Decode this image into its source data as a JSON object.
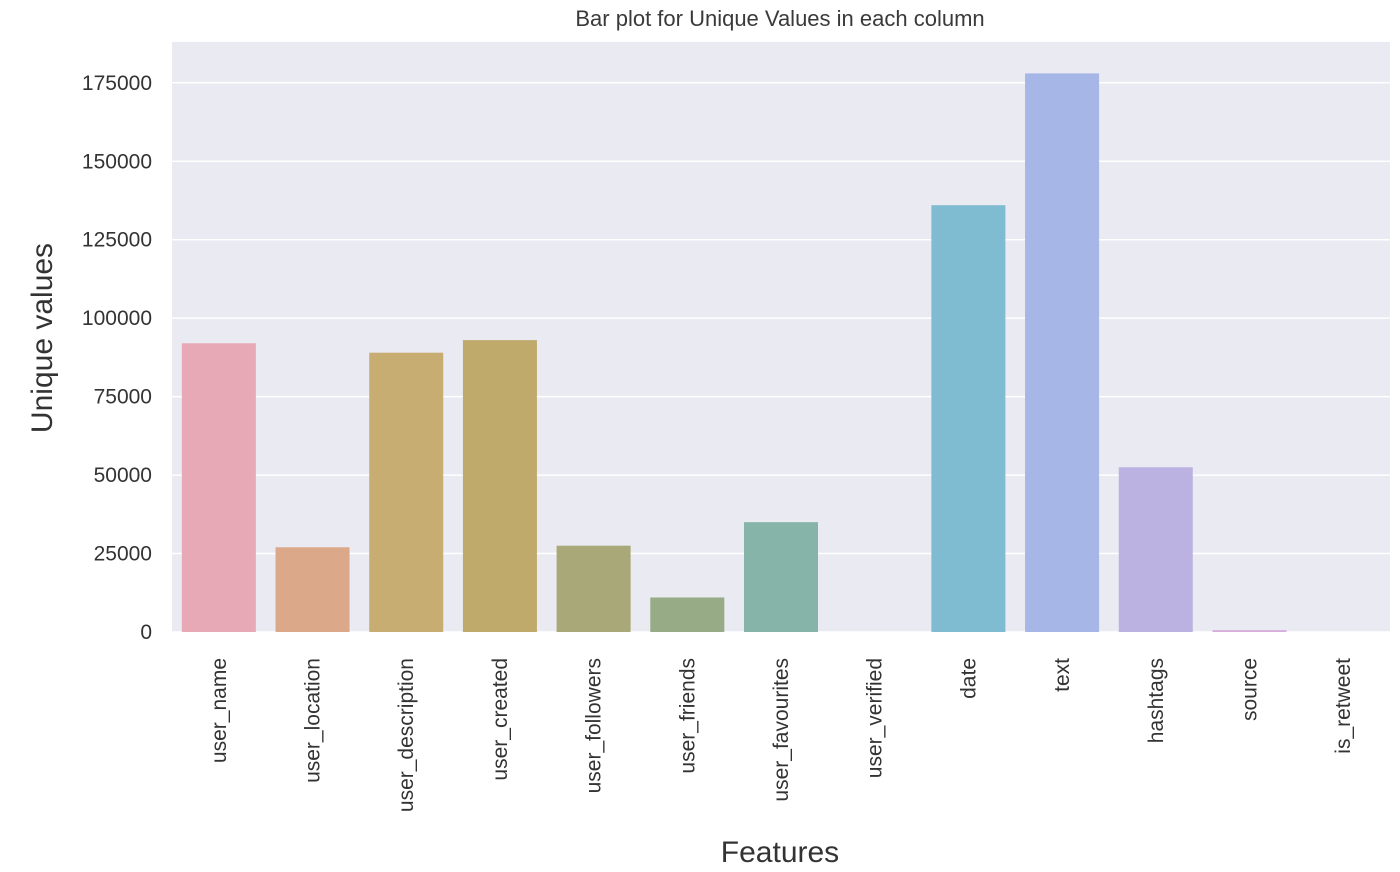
{
  "chart_data": {
    "type": "bar",
    "title": "Bar plot for Unique Values in each column",
    "xlabel": "Features",
    "ylabel": "Unique values",
    "ylim": [
      0,
      188000
    ],
    "yticks": [
      0,
      25000,
      50000,
      75000,
      100000,
      125000,
      150000,
      175000
    ],
    "ytick_labels": [
      "0",
      "25000",
      "50000",
      "75000",
      "100000",
      "125000",
      "150000",
      "175000"
    ],
    "grid": true,
    "legend": "none",
    "categories": [
      "user_name",
      "user_location",
      "user_description",
      "user_created",
      "user_followers",
      "user_friends",
      "user_favourites",
      "user_verified",
      "date",
      "text",
      "hashtags",
      "source",
      "is_retweet"
    ],
    "values": [
      92000,
      27000,
      89000,
      93000,
      27500,
      11000,
      35000,
      2,
      136000,
      178000,
      52500,
      600,
      1
    ],
    "colors": [
      "#e8a9b6",
      "#dba98a",
      "#c8ad72",
      "#bfaa6c",
      "#a9a878",
      "#97ab86",
      "#86b4a9",
      "#7eb7b5",
      "#7fbbd1",
      "#a6b6e7",
      "#bcb2e1",
      "#d7aedb",
      "#e2a9cf"
    ],
    "plot_bg": "#eaeaf2",
    "grid_color": "#ffffff"
  }
}
